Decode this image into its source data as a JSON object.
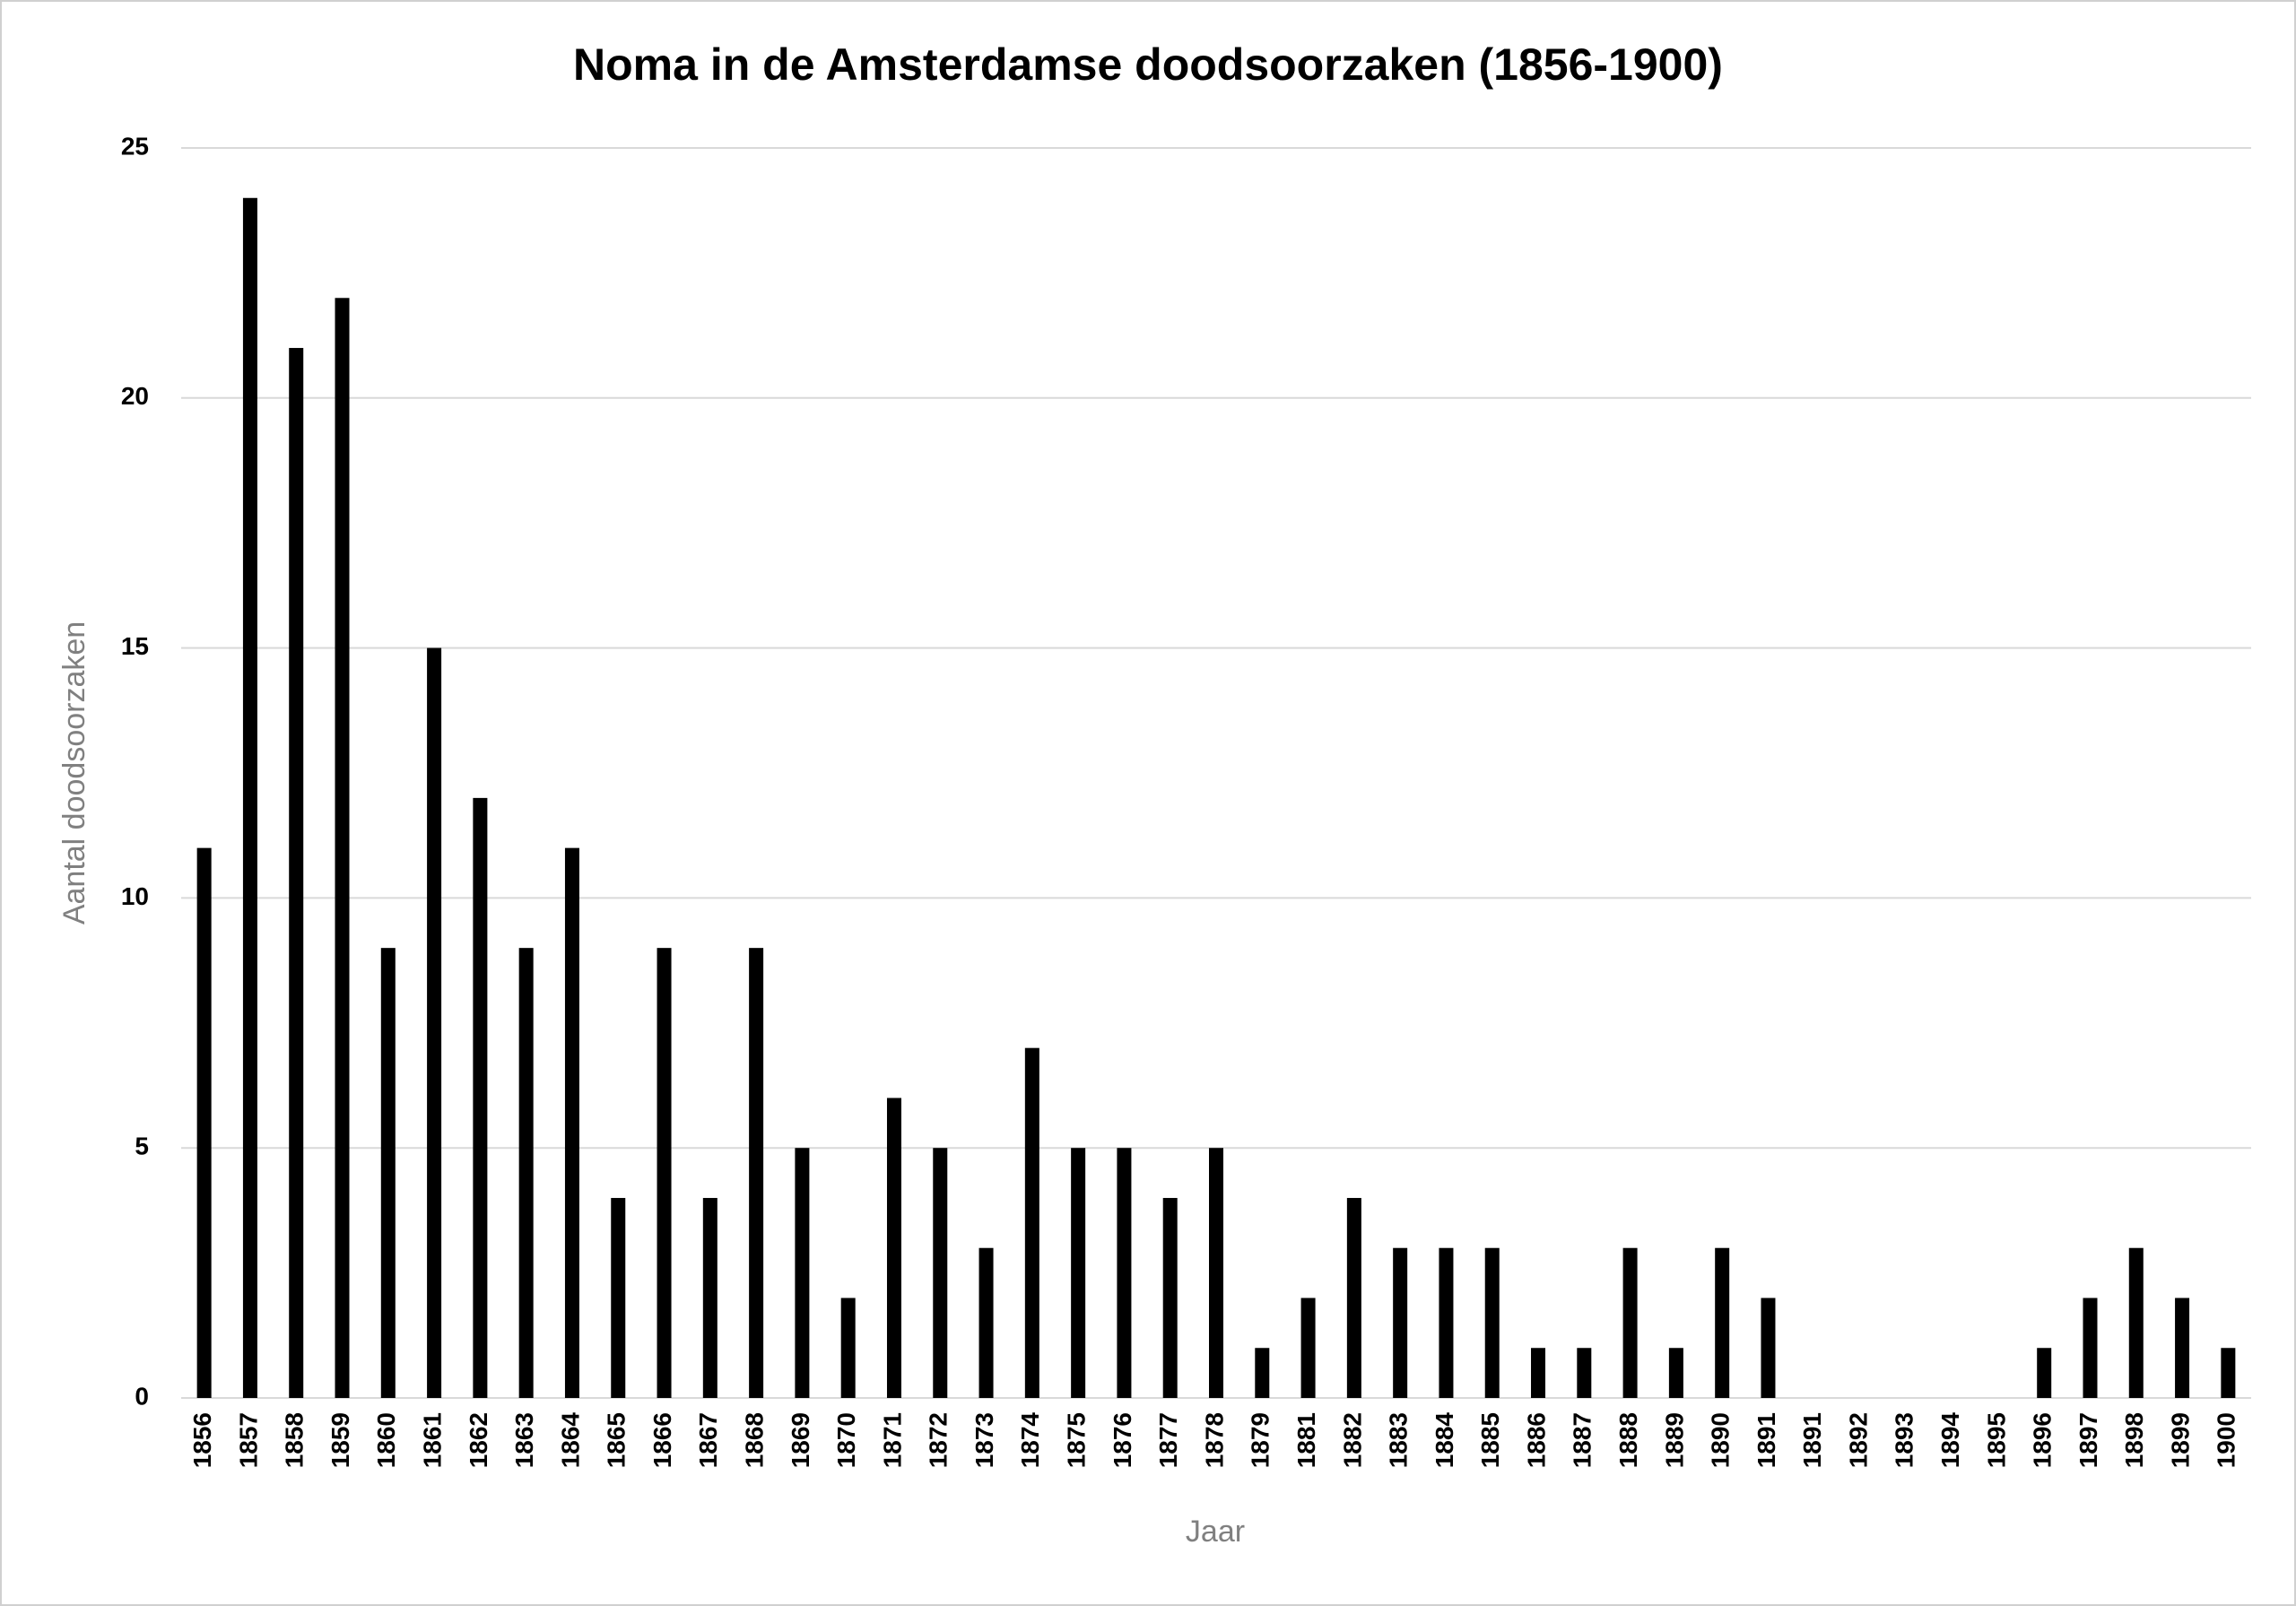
{
  "chart_data": {
    "type": "bar",
    "title": "Noma in de Amsterdamse doodsoorzaken (1856-1900)",
    "x_label": "Jaar",
    "y_label": "Aantal doodsoorzaken",
    "categories": [
      "1856",
      "1857",
      "1858",
      "1859",
      "1860",
      "1861",
      "1862",
      "1863",
      "1864",
      "1865",
      "1866",
      "1867",
      "1868",
      "1869",
      "1870",
      "1871",
      "1872",
      "1873",
      "1874",
      "1875",
      "1876",
      "1877",
      "1878",
      "1879",
      "1881",
      "1882",
      "1883",
      "1884",
      "1885",
      "1886",
      "1887",
      "1888",
      "1889",
      "1890",
      "1891",
      "1891",
      "1892",
      "1893",
      "1894",
      "1895",
      "1896",
      "1897",
      "1898",
      "1899",
      "1900"
    ],
    "values": [
      11,
      24,
      21,
      22,
      9,
      15,
      12,
      9,
      11,
      4,
      9,
      4,
      9,
      5,
      2,
      6,
      5,
      3,
      7,
      5,
      5,
      4,
      5,
      1,
      2,
      4,
      3,
      3,
      3,
      1,
      1,
      3,
      1,
      3,
      2,
      0,
      0,
      0,
      0,
      0,
      1,
      2,
      3,
      2,
      1
    ],
    "color": "#000000",
    "ylim": [
      0,
      25
    ],
    "yticks": [
      0,
      5,
      10,
      15,
      20,
      25
    ],
    "grid": true
  }
}
